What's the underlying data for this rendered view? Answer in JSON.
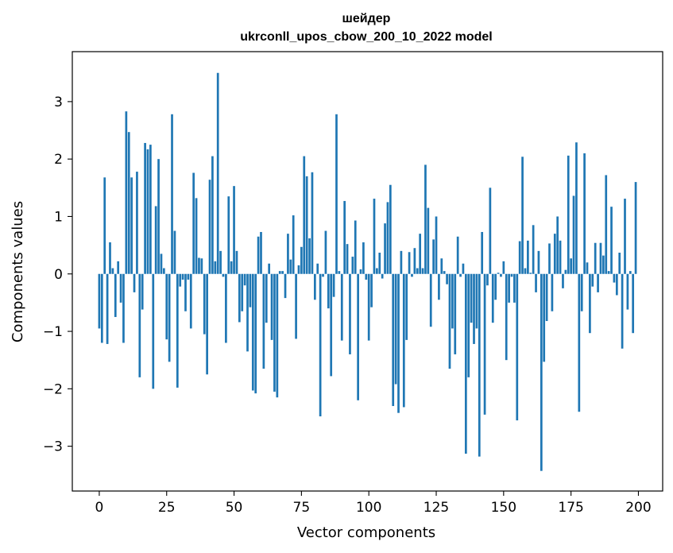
{
  "chart_data": {
    "type": "bar",
    "title": "шейдер",
    "subtitle": "ukrconll_upos_cbow_200_10_2022 model",
    "xlabel": "Vector components",
    "ylabel": "Components values",
    "xlim": [
      -10,
      209
    ],
    "ylim": [
      -3.78,
      3.87
    ],
    "xticks": [
      0,
      25,
      50,
      75,
      100,
      125,
      150,
      175,
      200
    ],
    "yticks": [
      -3,
      -2,
      -1,
      0,
      1,
      2,
      3
    ],
    "grid": false,
    "bar_color": "#1f77b4",
    "values": [
      -0.95,
      -1.2,
      1.68,
      -1.22,
      0.55,
      0.1,
      -0.75,
      0.22,
      -0.5,
      -1.2,
      2.83,
      2.47,
      1.68,
      -0.32,
      1.78,
      -1.8,
      -0.62,
      2.28,
      2.17,
      2.25,
      -2.0,
      1.18,
      2.0,
      0.35,
      0.1,
      -1.14,
      -1.53,
      2.78,
      0.75,
      -1.98,
      -0.22,
      -0.1,
      -0.65,
      -0.1,
      -0.95,
      1.76,
      1.32,
      0.28,
      0.27,
      -1.05,
      -1.75,
      1.64,
      2.05,
      0.22,
      3.5,
      0.4,
      -0.05,
      -1.2,
      1.35,
      0.22,
      1.53,
      0.4,
      -0.84,
      -0.65,
      -0.2,
      -1.35,
      -0.58,
      -2.03,
      -2.08,
      0.65,
      0.73,
      -1.65,
      -0.85,
      0.18,
      -1.15,
      -2.05,
      -2.15,
      0.05,
      0.05,
      -0.42,
      0.7,
      0.25,
      1.02,
      -1.13,
      0.15,
      0.47,
      2.05,
      1.7,
      0.62,
      1.77,
      -0.45,
      0.18,
      -2.48,
      -0.05,
      0.75,
      -0.6,
      -1.78,
      -0.4,
      2.78,
      0.05,
      -1.16,
      1.27,
      0.52,
      -1.4,
      0.3,
      0.93,
      -2.2,
      0.08,
      0.55,
      -0.1,
      -1.16,
      -0.58,
      1.31,
      0.1,
      0.37,
      -0.08,
      0.88,
      1.25,
      1.55,
      -2.3,
      -1.92,
      -2.42,
      0.4,
      -2.32,
      -1.15,
      0.38,
      -0.05,
      0.45,
      0.1,
      0.7,
      0.1,
      1.9,
      1.15,
      -0.92,
      0.6,
      1.0,
      -0.45,
      0.27,
      0.05,
      -0.18,
      -1.65,
      -0.95,
      -1.4,
      0.65,
      -0.05,
      0.18,
      -3.13,
      -1.8,
      -0.85,
      -1.22,
      -0.95,
      -3.18,
      0.73,
      -2.45,
      -0.2,
      1.5,
      -0.85,
      -0.45,
      0.02,
      -0.05,
      0.22,
      -1.5,
      -0.5,
      -0.05,
      -0.5,
      -2.55,
      0.57,
      2.04,
      0.1,
      0.58,
      0.02,
      0.85,
      -0.32,
      0.4,
      -3.43,
      -1.53,
      -0.82,
      0.53,
      -0.65,
      0.7,
      1.0,
      0.58,
      -0.25,
      0.07,
      2.06,
      0.27,
      1.36,
      2.29,
      -2.4,
      -0.65,
      2.1,
      0.2,
      -1.03,
      -0.22,
      0.54,
      -0.32,
      0.54,
      0.32,
      1.72,
      0.05,
      1.17,
      -0.15,
      -0.37,
      0.37,
      -1.3,
      1.31,
      -0.62,
      0.05,
      -1.03,
      1.6
    ]
  }
}
